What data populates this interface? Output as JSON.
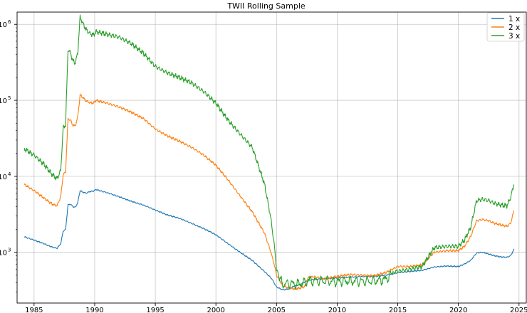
{
  "chart_data": {
    "type": "line",
    "title": "TWII Rolling Sample",
    "xlabel": "",
    "ylabel": "",
    "yscale": "log",
    "xlim": [
      1983.6,
      2025.6
    ],
    "ylim": [
      215,
      1450000
    ],
    "grid": true,
    "legend_position": "top-right",
    "x_ticks": [
      1985,
      1990,
      1995,
      2000,
      2005,
      2010,
      2015,
      2020,
      2025
    ],
    "x_tick_labels": [
      "1985",
      "1990",
      "1995",
      "2000",
      "2005",
      "2010",
      "2015",
      "2020",
      "2025"
    ],
    "y_ticks": [
      {
        "value": 1000,
        "base": "10",
        "exp": "3"
      },
      {
        "value": 10000,
        "base": "10",
        "exp": "4"
      },
      {
        "value": 100000,
        "base": "10",
        "exp": "5"
      },
      {
        "value": 1000000,
        "base": "10",
        "exp": "6"
      }
    ],
    "series": [
      {
        "name": "1 x",
        "color": "#1f77b4",
        "points": [
          [
            1984.2,
            1600
          ],
          [
            1985.0,
            1450
          ],
          [
            1985.8,
            1300
          ],
          [
            1986.5,
            1170
          ],
          [
            1986.9,
            1130
          ],
          [
            1987.2,
            1300
          ],
          [
            1987.4,
            1900
          ],
          [
            1987.6,
            2000
          ],
          [
            1987.8,
            4200
          ],
          [
            1988.0,
            4300
          ],
          [
            1988.2,
            4000
          ],
          [
            1988.4,
            3900
          ],
          [
            1988.6,
            4500
          ],
          [
            1988.8,
            6500
          ],
          [
            1989.0,
            6200
          ],
          [
            1989.3,
            6000
          ],
          [
            1989.6,
            6300
          ],
          [
            1989.9,
            6400
          ],
          [
            1990.1,
            6700
          ],
          [
            1991.0,
            6100
          ],
          [
            1992.0,
            5400
          ],
          [
            1993.0,
            4700
          ],
          [
            1994.0,
            4200
          ],
          [
            1995.0,
            3600
          ],
          [
            1996.0,
            3100
          ],
          [
            1997.0,
            2800
          ],
          [
            1998.0,
            2400
          ],
          [
            1999.0,
            2050
          ],
          [
            2000.0,
            1700
          ],
          [
            2001.0,
            1300
          ],
          [
            2002.0,
            1000
          ],
          [
            2003.0,
            780
          ],
          [
            2004.0,
            560
          ],
          [
            2004.6,
            450
          ],
          [
            2005.0,
            350
          ],
          [
            2005.5,
            320
          ],
          [
            2006.0,
            330
          ],
          [
            2006.5,
            360
          ],
          [
            2007.0,
            380
          ],
          [
            2007.5,
            420
          ],
          [
            2008.0,
            440
          ],
          [
            2009.0,
            450
          ],
          [
            2010.0,
            460
          ],
          [
            2011.0,
            470
          ],
          [
            2012.0,
            480
          ],
          [
            2013.0,
            480
          ],
          [
            2014.0,
            500
          ],
          [
            2015.0,
            540
          ],
          [
            2016.0,
            560
          ],
          [
            2017.0,
            580
          ],
          [
            2018.0,
            640
          ],
          [
            2019.0,
            660
          ],
          [
            2020.0,
            650
          ],
          [
            2020.5,
            700
          ],
          [
            2021.0,
            780
          ],
          [
            2021.5,
            980
          ],
          [
            2022.0,
            1000
          ],
          [
            2022.5,
            950
          ],
          [
            2023.0,
            900
          ],
          [
            2023.5,
            870
          ],
          [
            2024.0,
            860
          ],
          [
            2024.3,
            900
          ],
          [
            2024.6,
            1100
          ]
        ]
      },
      {
        "name": "2 x",
        "color": "#ff7f0e",
        "points": [
          [
            1984.2,
            7800
          ],
          [
            1985.0,
            6500
          ],
          [
            1985.8,
            5200
          ],
          [
            1986.5,
            4300
          ],
          [
            1986.9,
            4100
          ],
          [
            1987.2,
            5400
          ],
          [
            1987.4,
            10500
          ],
          [
            1987.6,
            11500
          ],
          [
            1987.8,
            57000
          ],
          [
            1988.0,
            55000
          ],
          [
            1988.2,
            47000
          ],
          [
            1988.4,
            46000
          ],
          [
            1988.6,
            60000
          ],
          [
            1988.8,
            118000
          ],
          [
            1989.0,
            110000
          ],
          [
            1989.3,
            98000
          ],
          [
            1989.6,
            93000
          ],
          [
            1989.9,
            92000
          ],
          [
            1990.1,
            100000
          ],
          [
            1991.0,
            92000
          ],
          [
            1992.0,
            82000
          ],
          [
            1993.0,
            70000
          ],
          [
            1994.0,
            58000
          ],
          [
            1995.0,
            42000
          ],
          [
            1996.0,
            34000
          ],
          [
            1997.0,
            29000
          ],
          [
            1998.0,
            24000
          ],
          [
            1999.0,
            19000
          ],
          [
            2000.0,
            14000
          ],
          [
            2001.0,
            9000
          ],
          [
            2002.0,
            5500
          ],
          [
            2003.0,
            3400
          ],
          [
            2004.0,
            1800
          ],
          [
            2004.5,
            1050
          ],
          [
            2004.8,
            700
          ],
          [
            2005.0,
            500
          ],
          [
            2005.3,
            420
          ],
          [
            2005.5,
            360
          ],
          [
            2006.0,
            340
          ],
          [
            2006.5,
            330
          ],
          [
            2007.0,
            340
          ],
          [
            2007.4,
            360
          ],
          [
            2007.6,
            460
          ],
          [
            2008.0,
            480
          ],
          [
            2009.0,
            450
          ],
          [
            2010.0,
            480
          ],
          [
            2011.0,
            510
          ],
          [
            2012.0,
            500
          ],
          [
            2013.0,
            490
          ],
          [
            2014.0,
            540
          ],
          [
            2015.0,
            650
          ],
          [
            2016.0,
            650
          ],
          [
            2017.0,
            680
          ],
          [
            2018.0,
            1000
          ],
          [
            2019.0,
            1050
          ],
          [
            2020.0,
            1050
          ],
          [
            2020.5,
            1200
          ],
          [
            2021.0,
            1600
          ],
          [
            2021.5,
            2600
          ],
          [
            2022.0,
            2700
          ],
          [
            2022.5,
            2600
          ],
          [
            2023.0,
            2400
          ],
          [
            2023.5,
            2300
          ],
          [
            2024.0,
            2200
          ],
          [
            2024.3,
            2400
          ],
          [
            2024.6,
            3600
          ]
        ]
      },
      {
        "name": "3 x",
        "color": "#2ca02c",
        "points": [
          [
            1984.2,
            23000
          ],
          [
            1985.0,
            19000
          ],
          [
            1985.8,
            14500
          ],
          [
            1986.5,
            10500
          ],
          [
            1986.9,
            9300
          ],
          [
            1987.2,
            12000
          ],
          [
            1987.4,
            43000
          ],
          [
            1987.6,
            48000
          ],
          [
            1987.8,
            470000
          ],
          [
            1988.0,
            420000
          ],
          [
            1988.2,
            330000
          ],
          [
            1988.4,
            310000
          ],
          [
            1988.6,
            420000
          ],
          [
            1988.8,
            1250000
          ],
          [
            1989.0,
            1050000
          ],
          [
            1989.3,
            850000
          ],
          [
            1989.6,
            760000
          ],
          [
            1989.9,
            720000
          ],
          [
            1990.1,
            800000
          ],
          [
            1991.0,
            740000
          ],
          [
            1992.0,
            680000
          ],
          [
            1993.0,
            560000
          ],
          [
            1994.0,
            420000
          ],
          [
            1995.0,
            280000
          ],
          [
            1996.0,
            230000
          ],
          [
            1997.0,
            200000
          ],
          [
            1998.0,
            170000
          ],
          [
            1999.0,
            130000
          ],
          [
            2000.0,
            92000
          ],
          [
            2001.0,
            55000
          ],
          [
            2002.0,
            36000
          ],
          [
            2003.0,
            24000
          ],
          [
            2004.0,
            8000
          ],
          [
            2004.5,
            3000
          ],
          [
            2004.8,
            1300
          ],
          [
            2005.0,
            600
          ],
          [
            2005.3,
            420
          ],
          [
            2005.6,
            380
          ],
          [
            2006.0,
            390
          ],
          [
            2006.5,
            380
          ],
          [
            2007.0,
            390
          ],
          [
            2007.4,
            400
          ],
          [
            2007.6,
            430
          ],
          [
            2008.0,
            420
          ],
          [
            2009.0,
            420
          ],
          [
            2010.0,
            410
          ],
          [
            2011.0,
            420
          ],
          [
            2012.0,
            415
          ],
          [
            2013.0,
            420
          ],
          [
            2014.0,
            440
          ],
          [
            2014.8,
            560
          ],
          [
            2015.5,
            580
          ],
          [
            2016.0,
            600
          ],
          [
            2017.0,
            650
          ],
          [
            2018.0,
            1150
          ],
          [
            2019.0,
            1200
          ],
          [
            2020.0,
            1200
          ],
          [
            2020.5,
            1450
          ],
          [
            2021.0,
            2100
          ],
          [
            2021.5,
            4800
          ],
          [
            2022.0,
            5000
          ],
          [
            2022.5,
            4800
          ],
          [
            2023.0,
            4400
          ],
          [
            2023.5,
            4200
          ],
          [
            2024.0,
            4100
          ],
          [
            2024.3,
            5200
          ],
          [
            2024.6,
            8200
          ]
        ]
      }
    ]
  }
}
